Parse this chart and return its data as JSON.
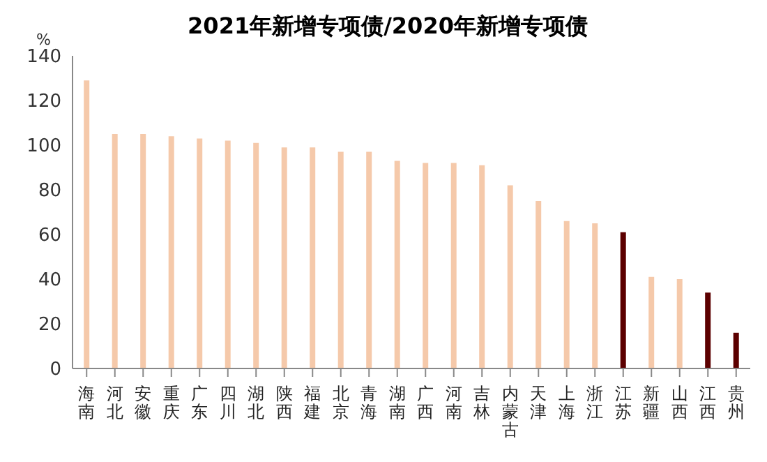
{
  "chart_data": {
    "type": "bar",
    "title": "2021年新增专项债/2020年新增专项债",
    "ylabel": "%",
    "categories": [
      "海南",
      "河北",
      "安徽",
      "重庆",
      "广东",
      "四川",
      "湖北",
      "陕西",
      "福建",
      "北京",
      "青海",
      "湖南",
      "广西",
      "河南",
      "吉林",
      "内蒙古",
      "天津",
      "上海",
      "浙江",
      "江苏",
      "新疆",
      "山西",
      "江西",
      "贵州"
    ],
    "values": [
      129,
      105,
      105,
      104,
      103,
      102,
      101,
      99,
      99,
      97,
      97,
      93,
      92,
      92,
      91,
      82,
      75,
      66,
      65,
      61,
      41,
      40,
      34,
      16
    ],
    "colors": [
      "#f5c9aa",
      "#f5c9aa",
      "#f5c9aa",
      "#f5c9aa",
      "#f5c9aa",
      "#f5c9aa",
      "#f5c9aa",
      "#f5c9aa",
      "#f5c9aa",
      "#f5c9aa",
      "#f5c9aa",
      "#f5c9aa",
      "#f5c9aa",
      "#f5c9aa",
      "#f5c9aa",
      "#f5c9aa",
      "#f5c9aa",
      "#f5c9aa",
      "#f5c9aa",
      "#5c0000",
      "#f5c9aa",
      "#f5c9aa",
      "#5c0000",
      "#5c0000"
    ],
    "ylim": [
      0,
      140
    ],
    "yticks": [
      0,
      20,
      40,
      60,
      80,
      100,
      120,
      140
    ],
    "grid": false,
    "legend": false
  }
}
